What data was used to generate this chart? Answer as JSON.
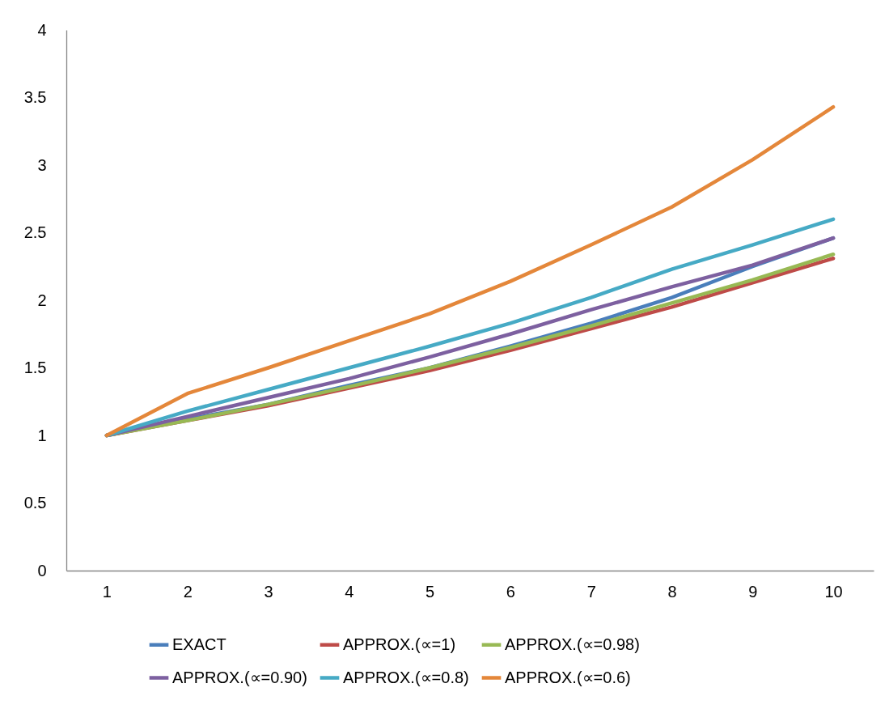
{
  "chart_data": {
    "type": "line",
    "categories": [
      "1",
      "2",
      "3",
      "4",
      "5",
      "6",
      "7",
      "8",
      "9",
      "10"
    ],
    "ylim": [
      0,
      4
    ],
    "yticks": [
      0,
      0.5,
      1,
      1.5,
      2,
      2.5,
      3,
      3.5,
      4
    ],
    "legend": "bottom",
    "marker": "none",
    "line_style": "solid",
    "series": [
      {
        "name": "EXACT",
        "color": "#4a7ebb",
        "values": [
          1,
          1.12,
          1.23,
          1.37,
          1.5,
          1.66,
          1.83,
          2.02,
          2.25,
          2.46
        ]
      },
      {
        "name": "APPROX.(∝=1)",
        "color": "#be4b48",
        "values": [
          1,
          1.11,
          1.22,
          1.35,
          1.48,
          1.63,
          1.79,
          1.95,
          2.13,
          2.31
        ]
      },
      {
        "name": "APPROX.(∝=0.98)",
        "color": "#98b954",
        "values": [
          1,
          1.11,
          1.23,
          1.36,
          1.5,
          1.65,
          1.81,
          1.98,
          2.15,
          2.34
        ]
      },
      {
        "name": "APPROX.(∝=0.90)",
        "color": "#7d60a0",
        "values": [
          1,
          1.14,
          1.28,
          1.42,
          1.58,
          1.75,
          1.93,
          2.1,
          2.26,
          2.46
        ]
      },
      {
        "name": "APPROX.(∝=0.8)",
        "color": "#46aac5",
        "values": [
          1,
          1.18,
          1.34,
          1.5,
          1.66,
          1.83,
          2.02,
          2.23,
          2.41,
          2.6
        ]
      },
      {
        "name": "APPROX.(∝=0.6)",
        "color": "#e4873a",
        "values": [
          1,
          1.31,
          1.5,
          1.7,
          1.9,
          2.14,
          2.41,
          2.69,
          3.04,
          3.43
        ]
      }
    ]
  }
}
